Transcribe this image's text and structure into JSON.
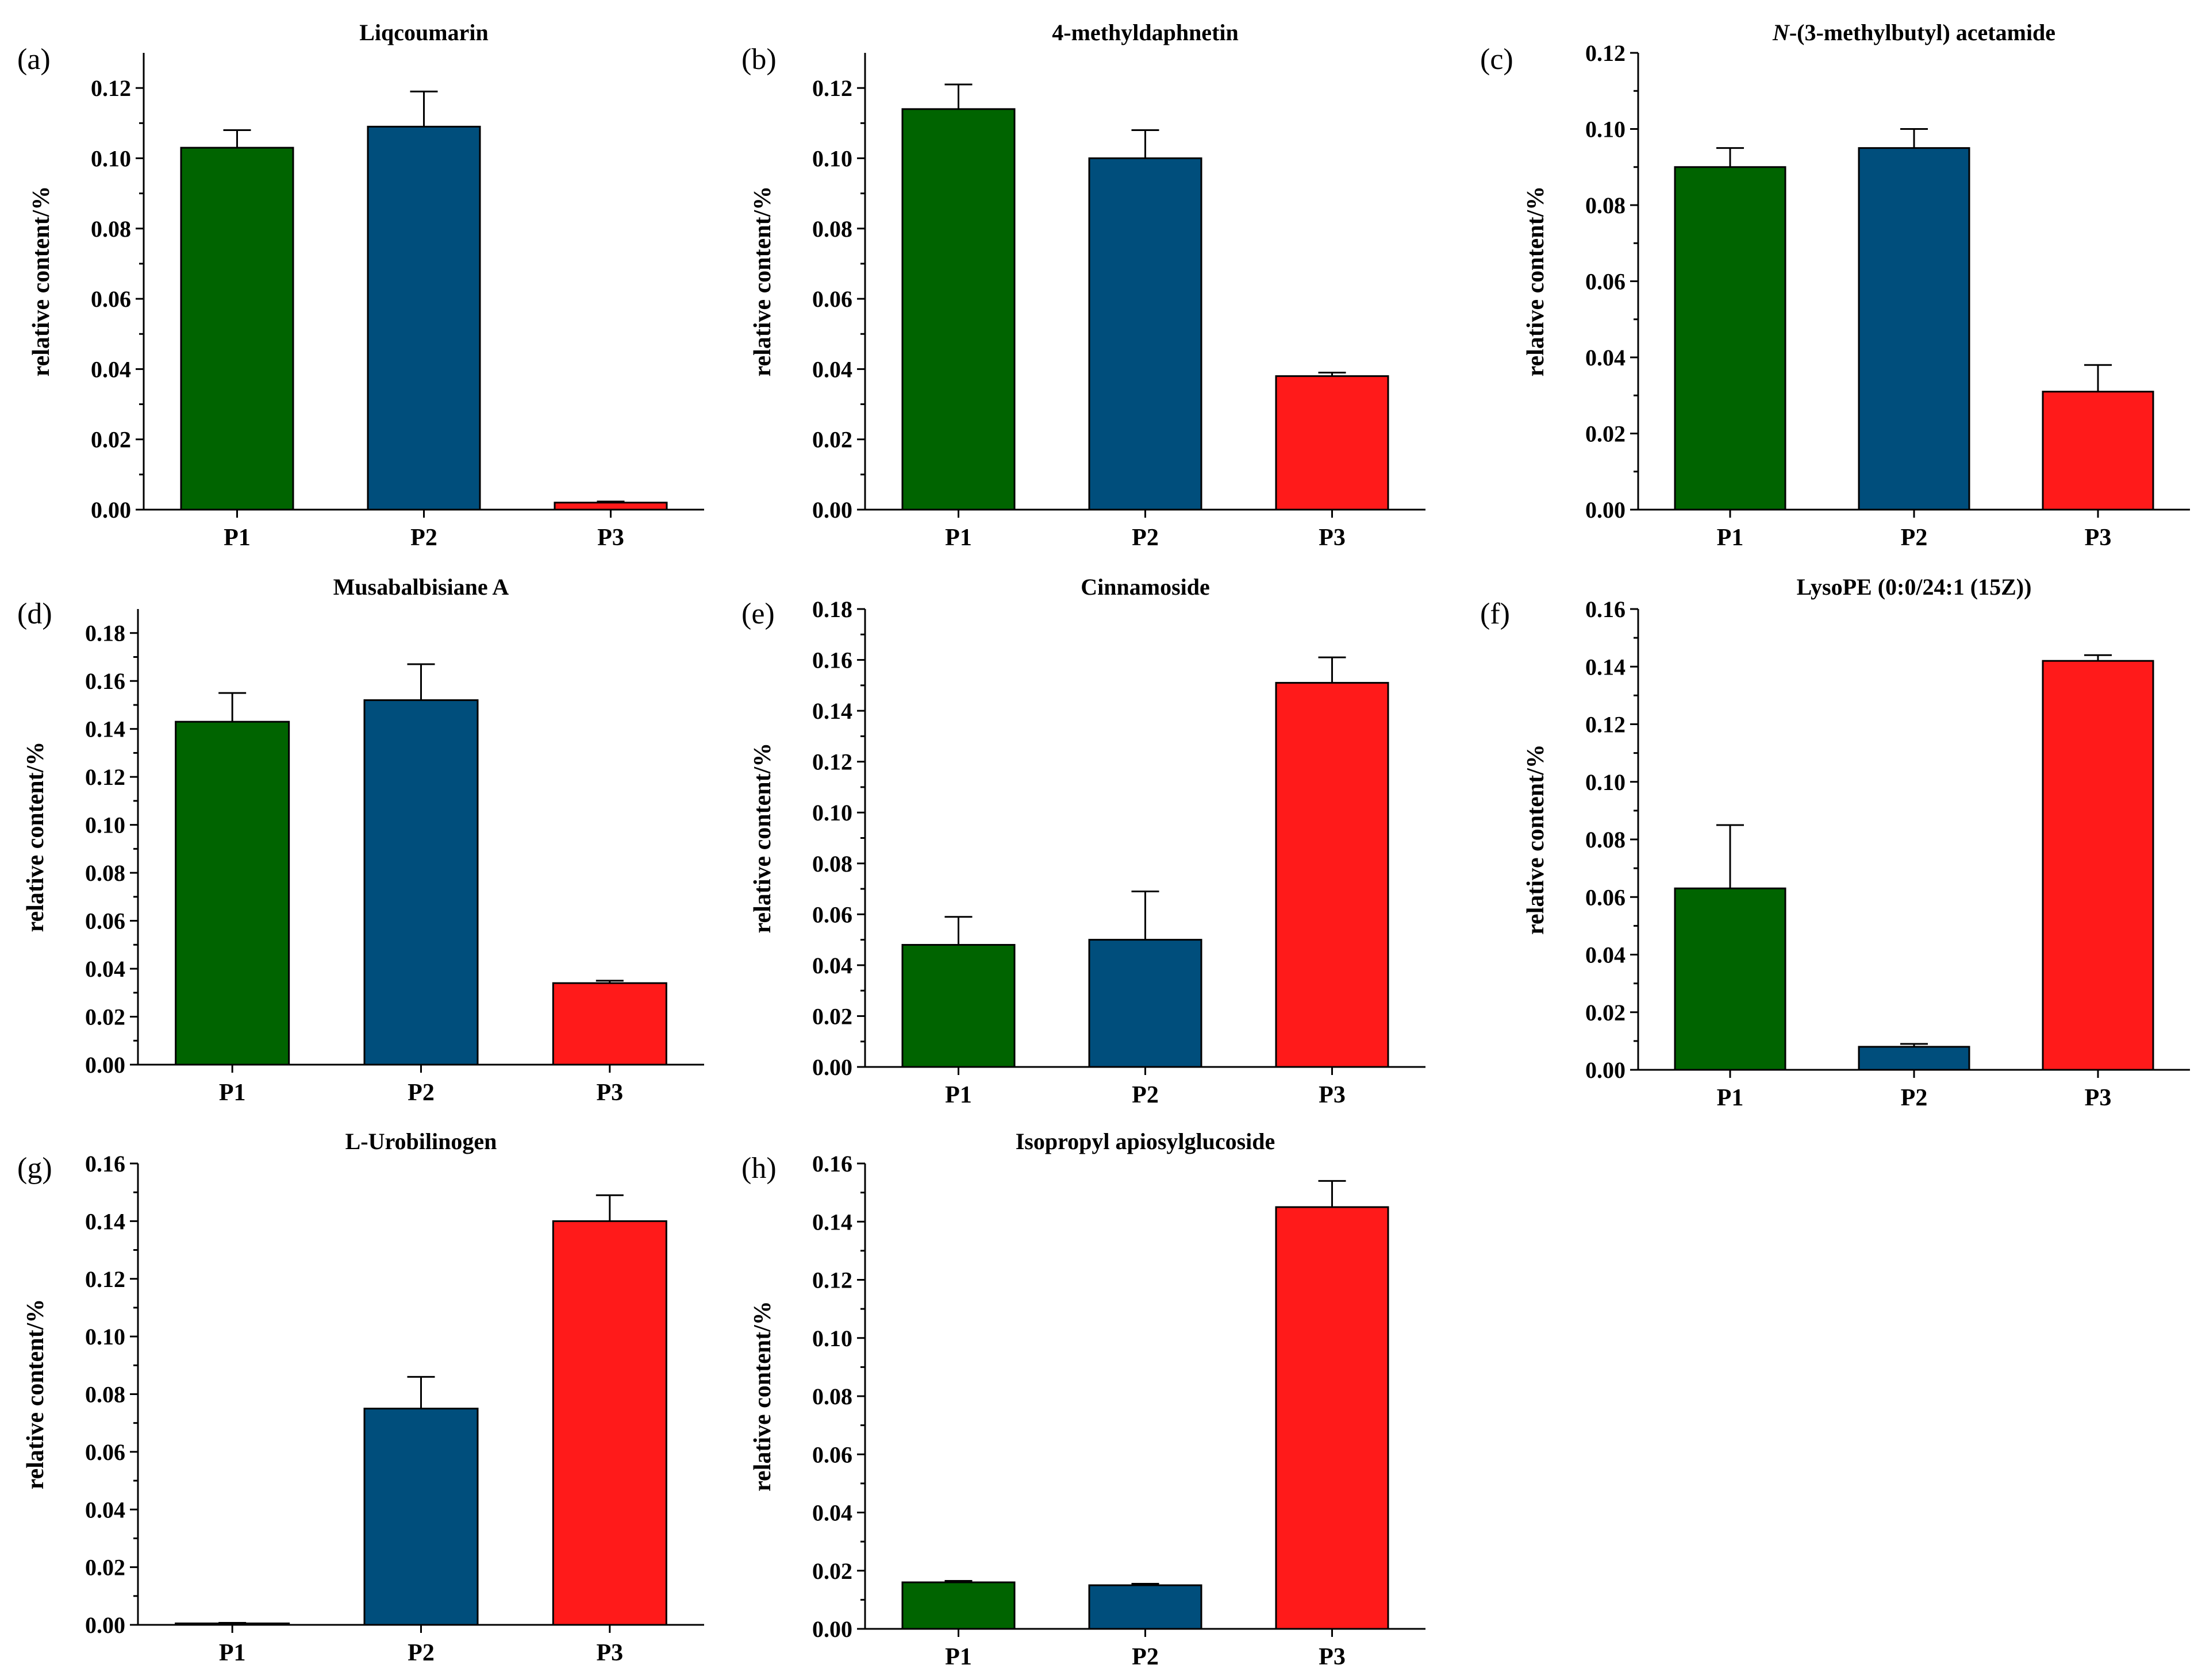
{
  "colors": {
    "P1": "#006400",
    "P2": "#004e7c",
    "P3": "#ff1a1a"
  },
  "chart_data": [
    {
      "type": "bar",
      "panel": "(a)",
      "title": "Liqcoumarin",
      "ylabel": "relative content/%",
      "categories": [
        "P1",
        "P2",
        "P3"
      ],
      "values": [
        0.103,
        0.109,
        0.002
      ],
      "errors": [
        0.005,
        0.01,
        0.0003
      ],
      "ylim": [
        0,
        0.13
      ],
      "yticks": [
        "0.00",
        "0.02",
        "0.04",
        "0.06",
        "0.08",
        "0.10",
        "0.12"
      ]
    },
    {
      "type": "bar",
      "panel": "(b)",
      "title": "4-methyldaphnetin",
      "ylabel": "relative content/%",
      "categories": [
        "P1",
        "P2",
        "P3"
      ],
      "values": [
        0.114,
        0.1,
        0.038
      ],
      "errors": [
        0.007,
        0.008,
        0.001
      ],
      "ylim": [
        0,
        0.13
      ],
      "yticks": [
        "0.00",
        "0.02",
        "0.04",
        "0.06",
        "0.08",
        "0.10",
        "0.12"
      ]
    },
    {
      "type": "bar",
      "panel": "(c)",
      "title": "N-(3-methylbutyl) acetamide",
      "title_italic_prefix": "N",
      "title_rest": "-(3-methylbutyl) acetamide",
      "ylabel": "relative content/%",
      "categories": [
        "P1",
        "P2",
        "P3"
      ],
      "values": [
        0.09,
        0.095,
        0.031
      ],
      "errors": [
        0.005,
        0.005,
        0.007
      ],
      "ylim": [
        0,
        0.12
      ],
      "yticks": [
        "0.00",
        "0.02",
        "0.04",
        "0.06",
        "0.08",
        "0.10",
        "0.12"
      ]
    },
    {
      "type": "bar",
      "panel": "(d)",
      "title": "Musabalbisiane A",
      "ylabel": "relative content/%",
      "categories": [
        "P1",
        "P2",
        "P3"
      ],
      "values": [
        0.143,
        0.152,
        0.034
      ],
      "errors": [
        0.012,
        0.015,
        0.001
      ],
      "ylim": [
        0,
        0.19
      ],
      "yticks": [
        "0.00",
        "0.02",
        "0.04",
        "0.06",
        "0.08",
        "0.10",
        "0.12",
        "0.14",
        "0.16",
        "0.18"
      ]
    },
    {
      "type": "bar",
      "panel": "(e)",
      "title": "Cinnamoside",
      "ylabel": "relative content/%",
      "categories": [
        "P1",
        "P2",
        "P3"
      ],
      "values": [
        0.048,
        0.05,
        0.151
      ],
      "errors": [
        0.011,
        0.019,
        0.01
      ],
      "ylim": [
        0,
        0.18
      ],
      "yticks": [
        "0.00",
        "0.02",
        "0.04",
        "0.06",
        "0.08",
        "0.10",
        "0.12",
        "0.14",
        "0.16",
        "0.18"
      ]
    },
    {
      "type": "bar",
      "panel": "(f)",
      "title": "LysoPE (0:0/24:1 (15Z))",
      "ylabel": "relative content/%",
      "categories": [
        "P1",
        "P2",
        "P3"
      ],
      "values": [
        0.063,
        0.008,
        0.142
      ],
      "errors": [
        0.022,
        0.001,
        0.002
      ],
      "ylim": [
        0,
        0.16
      ],
      "yticks": [
        "0.00",
        "0.02",
        "0.04",
        "0.06",
        "0.08",
        "0.10",
        "0.12",
        "0.14",
        "0.16"
      ]
    },
    {
      "type": "bar",
      "panel": "(g)",
      "title": "L-Urobilinogen",
      "ylabel": "relative content/%",
      "categories": [
        "P1",
        "P2",
        "P3"
      ],
      "values": [
        0.0005,
        0.075,
        0.14
      ],
      "errors": [
        0.0002,
        0.011,
        0.009
      ],
      "ylim": [
        0,
        0.16
      ],
      "yticks": [
        "0.00",
        "0.02",
        "0.04",
        "0.06",
        "0.08",
        "0.10",
        "0.12",
        "0.14",
        "0.16"
      ]
    },
    {
      "type": "bar",
      "panel": "(h)",
      "title": "Isopropyl apiosylglucoside",
      "ylabel": "relative content/%",
      "categories": [
        "P1",
        "P2",
        "P3"
      ],
      "values": [
        0.016,
        0.015,
        0.145
      ],
      "errors": [
        0.0005,
        0.0005,
        0.009
      ],
      "ylim": [
        0,
        0.16
      ],
      "yticks": [
        "0.00",
        "0.02",
        "0.04",
        "0.06",
        "0.08",
        "0.10",
        "0.12",
        "0.14",
        "0.16"
      ]
    }
  ]
}
